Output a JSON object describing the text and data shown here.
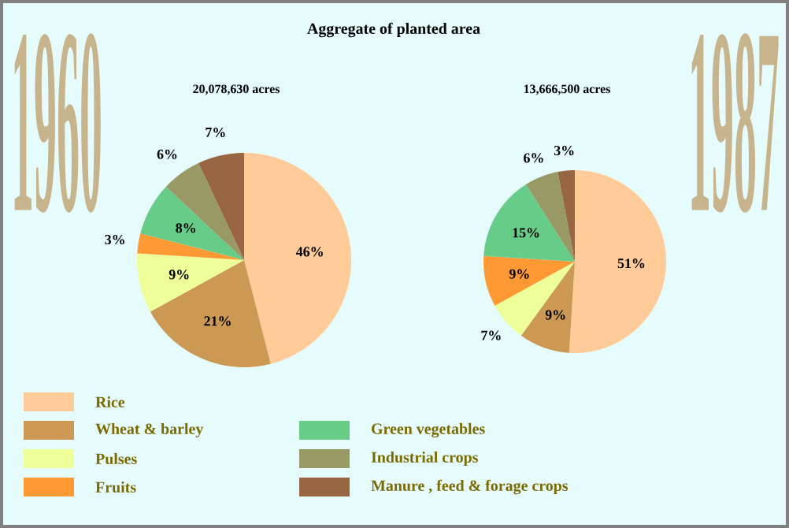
{
  "chart_data": [
    {
      "type": "pie",
      "title": "1960",
      "subtitle": "20,078,630 acres",
      "annotations": [
        "Aggregate of planted area"
      ],
      "categories": [
        "Rice",
        "Wheat & barley",
        "Pulses",
        "Fruits",
        "Green vegetables",
        "Industrial crops",
        "Manure , feed & forage crops"
      ],
      "values": [
        46,
        21,
        9,
        3,
        8,
        6,
        7
      ],
      "colors": [
        "#ffcc99",
        "#cc9955",
        "#eeff99",
        "#ff9933",
        "#66cc88",
        "#999966",
        "#996644"
      ],
      "value_labels": [
        "46%",
        "21%",
        "9%",
        "3%",
        "8%",
        "6%",
        "7%"
      ],
      "legend": "bottom"
    },
    {
      "type": "pie",
      "title": "1987",
      "subtitle": "13,666,500 acres",
      "categories": [
        null,
        null,
        null,
        null,
        null,
        null,
        null
      ],
      "values": [
        51,
        9,
        7,
        9,
        15,
        6,
        3
      ],
      "colors": [
        "#ffcc99",
        "#cc9955",
        "#eeff99",
        "#ff9933",
        "#66cc88",
        "#999966",
        "#996644"
      ],
      "value_labels": [
        "51%",
        "9%",
        "7%",
        "9%",
        "15%",
        "6%",
        "3%"
      ]
    }
  ]
}
